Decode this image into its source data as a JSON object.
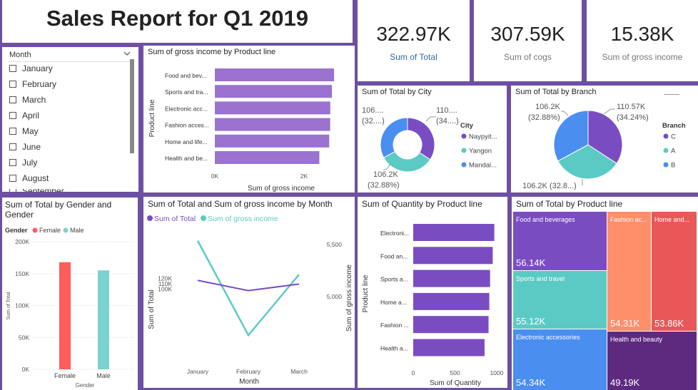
{
  "report_title": "Sales Report for Q1 2019",
  "kpis": [
    {
      "value": "322.97K",
      "label": "Sum of Total",
      "label_color": "#3a67a8"
    },
    {
      "value": "307.59K",
      "label": "Sum of cogs",
      "label_color": "#777777"
    },
    {
      "value": "15.38K",
      "label": "Sum of gross income",
      "label_color": "#777777"
    }
  ],
  "month_slicer": {
    "header": "Month",
    "items": [
      "January",
      "February",
      "March",
      "April",
      "May",
      "June",
      "July",
      "August",
      "September"
    ]
  },
  "gross_by_product": {
    "title": "Sum of gross income by Product line",
    "y_title": "Product line",
    "x_title": "Sum of gross income",
    "categories": [
      "Food and bev...",
      "Sports and tra...",
      "Electronic acc...",
      "Fashion acces...",
      "Home and life...",
      "Health and be..."
    ],
    "values": [
      2673,
      2625,
      2588,
      2586,
      2565,
      2343
    ],
    "ticks": [
      "0K",
      "2K"
    ],
    "color": "#9b72cf"
  },
  "total_by_city": {
    "title": "Sum of Total by City",
    "legend_title": "City",
    "legend": [
      "Naypyit...",
      "Yangon",
      "Mandal..."
    ],
    "colors": [
      "#7a4cc2",
      "#5ccac4",
      "#4a8ef0"
    ],
    "values": [
      110568,
      106200,
      106197
    ],
    "labels": [
      {
        "line1": "110....",
        "line2": "(34....)"
      },
      {
        "line1": "106.2K",
        "line2": "(32.88%)"
      },
      {
        "line1": "106....",
        "line2": "(32....)"
      }
    ]
  },
  "total_by_branch": {
    "title": "Sum of Total by Branch",
    "legend_title": "Branch",
    "legend": [
      "C",
      "A",
      "B"
    ],
    "colors": [
      "#7a4cc2",
      "#5ccac4",
      "#4a8ef0"
    ],
    "values": [
      110568,
      106200,
      106197
    ],
    "labels": [
      {
        "line1": "110.57K",
        "line2": "(34.24%)"
      },
      {
        "line1": "106.2K (32.8...)",
        "line2": ""
      },
      {
        "line1": "106.2K",
        "line2": "(32.88%)"
      }
    ]
  },
  "total_by_gender": {
    "title": "Sum of Total by Gender and Gender",
    "legend_title": "Gender",
    "legend": [
      "Female",
      "Male"
    ],
    "colors": [
      "#ff5c5c",
      "#7ad3d0"
    ],
    "categories": [
      "Female",
      "Male"
    ],
    "values": [
      167883,
      155084
    ],
    "ticks": [
      "0K",
      "50K",
      "100K",
      "150K",
      "200K"
    ],
    "x_title": "Gender",
    "y_title": "Sum of Total"
  },
  "total_gross_by_month": {
    "title": "Sum of Total and Sum of gross income by Month",
    "legend": [
      "Sum of Total",
      "Sum of gross income"
    ],
    "colors": [
      "#7a4cc2",
      "#5ccac4"
    ],
    "categories": [
      "January",
      "February",
      "March"
    ],
    "total": [
      116292,
      97219,
      109456
    ],
    "gross": [
      5537,
      4629,
      5212
    ],
    "left_ticks": [
      "100K",
      "110K",
      "120K"
    ],
    "right_ticks": [
      "5,000",
      "5,500"
    ],
    "x_title": "Month",
    "y_title": "Sum of Total",
    "y2_title": "Sum of gross income"
  },
  "qty_by_product": {
    "title": "Sum of Quantity by Product line",
    "categories": [
      "Electroni...",
      "Food an...",
      "Sports a...",
      "Home a...",
      "Fashion ...",
      "Health a..."
    ],
    "values": [
      971,
      952,
      920,
      911,
      902,
      854
    ],
    "ticks": [
      "0",
      "500",
      "1000"
    ],
    "x_title": "Sum of Quantity",
    "y_title": "Product line",
    "color": "#7a4cc2"
  },
  "treemap": {
    "title": "Sum of Total by Product line",
    "cells": [
      {
        "name": "Food and beverages",
        "value": "56.14K",
        "color": "#7a4cc2"
      },
      {
        "name": "Sports and travel",
        "value": "55.12K",
        "color": "#5ccac4"
      },
      {
        "name": "Electronic accessories",
        "value": "54.34K",
        "color": "#4a8ef0"
      },
      {
        "name": "Fashion ac...",
        "value": "54.31K",
        "color": "#ff8f6a"
      },
      {
        "name": "Home and...",
        "value": "53.86K",
        "color": "#e85858"
      },
      {
        "name": "Health and beauty",
        "value": "49.19K",
        "color": "#5e2a80"
      }
    ]
  }
}
